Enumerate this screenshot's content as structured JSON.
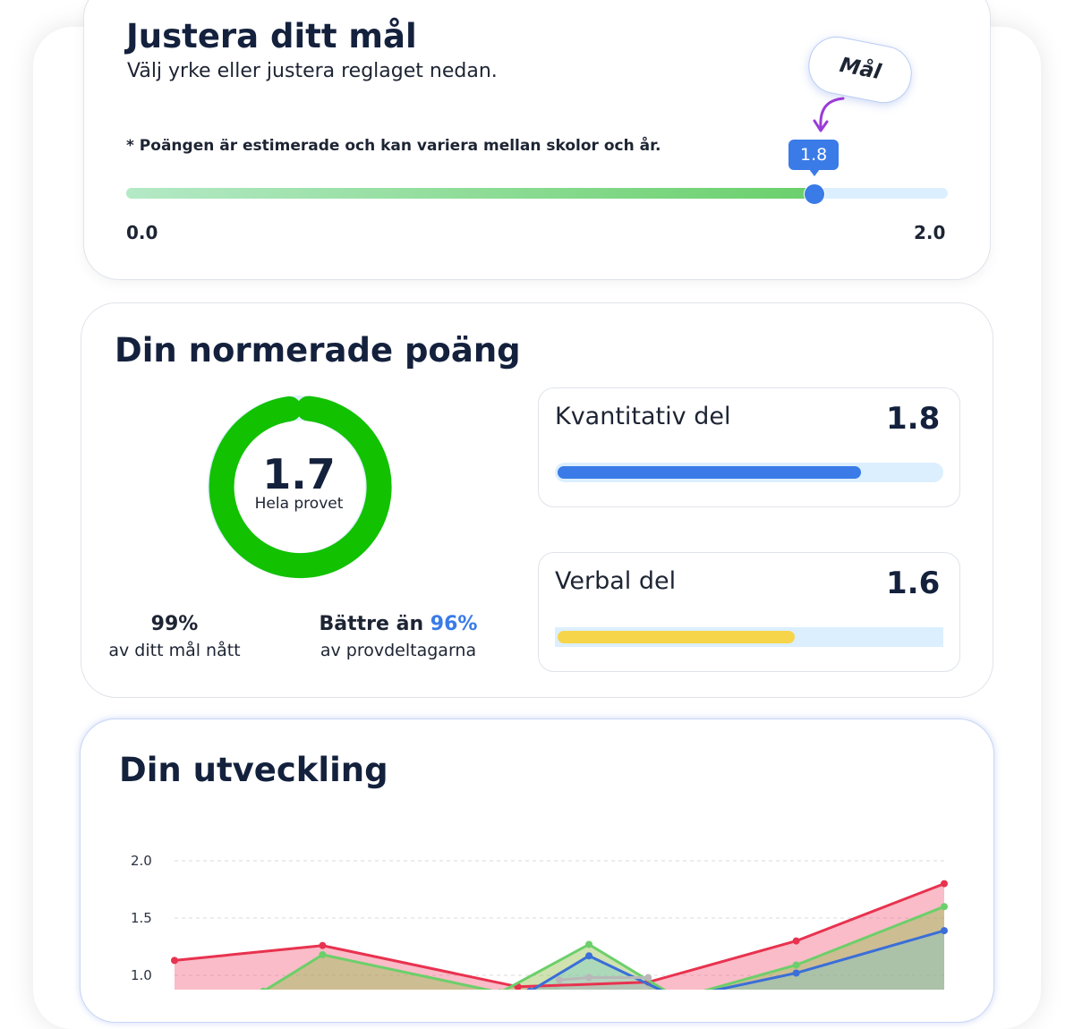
{
  "goal_card": {
    "title": "Justera ditt mål",
    "subtitle": "Välj yrke eller justera reglaget nedan.",
    "note": "* Poängen är estimerade och kan variera mellan skolor och år.",
    "slider_min": "0.0",
    "slider_max": "2.0",
    "slider_value": 1.8,
    "slider_value_label": "1.8",
    "goal_tag": "Mål"
  },
  "score_card": {
    "title": "Din normerade poäng",
    "total_score": "1.7",
    "total_label": "Hela provet",
    "goal_percent": "99%",
    "goal_percent_label": "av ditt mål nått",
    "better_than_prefix": "Bättre än",
    "better_than_percent": "96%",
    "better_than_label": "av provdeltagarna",
    "sections": [
      {
        "label": "Kvantitativ del",
        "value": "1.8",
        "fill": 0.78,
        "color": "#3a7be8"
      },
      {
        "label": "Verbal del",
        "value": "1.6",
        "fill": 0.61,
        "color": "#f7d54a"
      }
    ]
  },
  "progress_card": {
    "title": "Din utveckling"
  },
  "chart_data": {
    "type": "area",
    "yticks": [
      "2.0",
      "1.5",
      "1.0"
    ],
    "ylim": [
      0,
      2.0
    ],
    "grid": true,
    "x": [
      1,
      2,
      3,
      4,
      5,
      6,
      7,
      8,
      9,
      10,
      11,
      12,
      13,
      14
    ],
    "series": [
      {
        "color": "#e8324f",
        "points": [
          [
            1,
            1.13
          ],
          [
            3.5,
            1.26
          ],
          [
            6.8,
            0.9
          ],
          [
            9,
            0.94
          ],
          [
            11.5,
            1.3
          ],
          [
            14,
            1.8
          ]
        ]
      },
      {
        "color": "#6ccf6a",
        "points": [
          [
            2.5,
            0.86
          ],
          [
            3.5,
            1.18
          ],
          [
            6.5,
            0.85
          ],
          [
            8,
            1.27
          ],
          [
            9.5,
            0.8
          ],
          [
            11.5,
            1.09
          ],
          [
            14,
            1.6
          ]
        ]
      },
      {
        "color": "#3a6ed8",
        "points": [
          [
            7,
            0.86
          ],
          [
            8,
            1.17
          ],
          [
            9.5,
            0.8
          ],
          [
            11.5,
            1.02
          ],
          [
            14,
            1.39
          ]
        ]
      },
      {
        "color": "#b8b8b8",
        "points": [
          [
            7.5,
            0.96
          ],
          [
            8,
            0.98
          ],
          [
            9,
            0.98
          ]
        ]
      }
    ]
  }
}
